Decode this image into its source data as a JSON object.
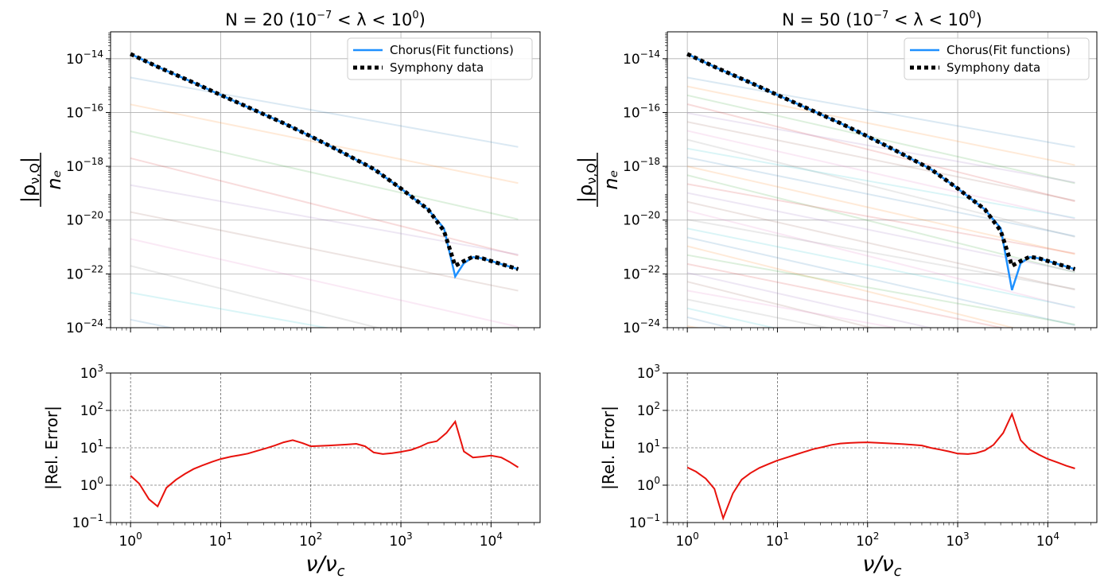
{
  "figure": {
    "panels": [
      {
        "title": "N = 20 (10⁻⁷ < λ < 10⁰)",
        "title_main": "N = 20 (10",
        "title_exp1": "−7",
        "title_mid": " < λ < 10",
        "title_exp2": "0",
        "title_end": ")",
        "ylabel_top": "|ρ",
        "ylabel_sub": "ν,Q",
        "ylabel_bottom": "nₑ",
        "ylabel_err": "|Rel. Error|",
        "xlabel": "ν/ν",
        "xlabel_sub": "c"
      },
      {
        "title": "N = 50 (10⁻⁷ < λ < 10⁰)",
        "title_main": "N = 50 (10",
        "title_exp1": "−7",
        "title_mid": " < λ < 10",
        "title_exp2": "0",
        "title_end": ")",
        "ylabel_top": "|ρ",
        "ylabel_sub": "ν,Q",
        "ylabel_bottom": "nₑ",
        "ylabel_err": "|Rel. Error|",
        "xlabel": "ν/ν",
        "xlabel_sub": "c"
      }
    ],
    "legend": {
      "fit": "Chorus(Fit functions)",
      "data": "Symphony data"
    },
    "colors": {
      "fit": "#1e90ff",
      "data": "#000000",
      "error": "#e8120c",
      "grid": "#b0b0b0"
    }
  },
  "chart_data": [
    {
      "type": "line",
      "title": "N = 20 (10^-7 < λ < 10^0)",
      "xlabel": "ν/ν_c",
      "ylabel": "|ρ_ν,Q| / n_e",
      "xscale": "log",
      "yscale": "log",
      "xlim": [
        0.6,
        35000
      ],
      "ylim": [
        1e-24,
        1e-13
      ],
      "xticks": [
        "10^0",
        "10^1",
        "10^2",
        "10^3",
        "10^4"
      ],
      "yticks": [
        "10^-24",
        "10^-22",
        "10^-20",
        "10^-18",
        "10^-16",
        "10^-14"
      ],
      "grid": true,
      "legend_position": "top-right",
      "series": [
        {
          "name": "Chorus(Fit functions)",
          "style": "solid",
          "color": "#1e90ff",
          "x": [
            1,
            2,
            5,
            10,
            20,
            50,
            100,
            200,
            500,
            1000,
            2000,
            3000,
            4000,
            5000,
            6300,
            8000,
            10000,
            15000,
            20000
          ],
          "y": [
            1.5e-14,
            5e-15,
            1.3e-15,
            4.5e-16,
            1.6e-16,
            4e-17,
            1.3e-17,
            4e-18,
            8e-19,
            1.5e-19,
            2.5e-20,
            5e-21,
            8e-23,
            2.5e-22,
            4.2e-22,
            3.8e-22,
            3e-22,
            2e-22,
            1.5e-22
          ]
        },
        {
          "name": "Symphony data",
          "style": "dotted",
          "color": "#000000",
          "x": [
            1,
            2,
            5,
            10,
            20,
            50,
            100,
            200,
            500,
            1000,
            2000,
            3000,
            4000,
            5000,
            6300,
            8000,
            10000,
            15000,
            20000
          ],
          "y": [
            1.5e-14,
            5e-15,
            1.3e-15,
            4.5e-16,
            1.6e-16,
            4e-17,
            1.3e-17,
            4e-18,
            8e-19,
            1.5e-19,
            2.5e-20,
            4e-21,
            2e-22,
            3e-22,
            4.3e-22,
            3.8e-22,
            3e-22,
            2e-22,
            1.5e-22
          ]
        }
      ]
    },
    {
      "type": "line",
      "xlabel": "ν/ν_c",
      "ylabel": "|Rel. Error|",
      "xscale": "log",
      "yscale": "log",
      "xlim": [
        0.6,
        35000
      ],
      "ylim": [
        0.1,
        1000
      ],
      "xticks": [
        "10^0",
        "10^1",
        "10^2",
        "10^3",
        "10^4"
      ],
      "yticks": [
        "10^-1",
        "10^0",
        "10^1",
        "10^2",
        "10^3"
      ],
      "grid": true,
      "series": [
        {
          "color": "#e8120c",
          "x": [
            1,
            1.25,
            1.6,
            2,
            2.5,
            3.2,
            4,
            5,
            6.3,
            8,
            10,
            13,
            16,
            20,
            25,
            32,
            40,
            50,
            63,
            80,
            100,
            160,
            250,
            320,
            400,
            500,
            630,
            800,
            1000,
            1300,
            1600,
            2000,
            2500,
            3200,
            4000,
            5000,
            6300,
            8000,
            10000,
            13000,
            16000,
            20000
          ],
          "y": [
            1.8,
            1.1,
            0.42,
            0.27,
            0.85,
            1.4,
            2.0,
            2.7,
            3.4,
            4.2,
            5.0,
            5.8,
            6.3,
            7.0,
            8.2,
            9.7,
            11.5,
            14,
            16,
            13.5,
            11,
            11.5,
            12.2,
            12.8,
            11,
            7.5,
            6.8,
            7.2,
            7.8,
            8.8,
            10.5,
            13.5,
            15,
            25,
            50,
            8,
            5.5,
            5.8,
            6.2,
            5.5,
            4.2,
            3
          ]
        }
      ]
    },
    {
      "type": "line",
      "title": "N = 50 (10^-7 < λ < 10^0)",
      "xlabel": "ν/ν_c",
      "ylabel": "|ρ_ν,Q| / n_e",
      "xscale": "log",
      "yscale": "log",
      "xlim": [
        0.6,
        35000
      ],
      "ylim": [
        1e-24,
        1e-13
      ],
      "xticks": [
        "10^0",
        "10^1",
        "10^2",
        "10^3",
        "10^4"
      ],
      "yticks": [
        "10^-24",
        "10^-22",
        "10^-20",
        "10^-18",
        "10^-16",
        "10^-14"
      ],
      "grid": true,
      "legend_position": "top-right",
      "series": [
        {
          "name": "Chorus(Fit functions)",
          "style": "solid",
          "color": "#1e90ff",
          "x": [
            1,
            2,
            5,
            10,
            20,
            50,
            100,
            200,
            500,
            1000,
            2000,
            3000,
            4000,
            5000,
            6300,
            8000,
            10000,
            15000,
            20000
          ],
          "y": [
            1.5e-14,
            5e-15,
            1.3e-15,
            4.5e-16,
            1.6e-16,
            4e-17,
            1.3e-17,
            4e-18,
            8e-19,
            1.5e-19,
            2.5e-20,
            5e-21,
            2.5e-23,
            2.5e-22,
            4.2e-22,
            3.8e-22,
            3e-22,
            2e-22,
            1.5e-22
          ]
        },
        {
          "name": "Symphony data",
          "style": "dotted",
          "color": "#000000",
          "x": [
            1,
            2,
            5,
            10,
            20,
            50,
            100,
            200,
            500,
            1000,
            2000,
            3000,
            4000,
            5000,
            6300,
            8000,
            10000,
            15000,
            20000
          ],
          "y": [
            1.5e-14,
            5e-15,
            1.3e-15,
            4.5e-16,
            1.6e-16,
            4e-17,
            1.3e-17,
            4e-18,
            8e-19,
            1.5e-19,
            2.5e-20,
            4e-21,
            2e-22,
            3e-22,
            4.3e-22,
            3.8e-22,
            3e-22,
            2e-22,
            1.5e-22
          ]
        }
      ]
    },
    {
      "type": "line",
      "xlabel": "ν/ν_c",
      "ylabel": "|Rel. Error|",
      "xscale": "log",
      "yscale": "log",
      "xlim": [
        0.6,
        35000
      ],
      "ylim": [
        0.1,
        1000
      ],
      "xticks": [
        "10^0",
        "10^1",
        "10^2",
        "10^3",
        "10^4"
      ],
      "yticks": [
        "10^-1",
        "10^0",
        "10^1",
        "10^2",
        "10^3"
      ],
      "grid": true,
      "series": [
        {
          "color": "#e8120c",
          "x": [
            1,
            1.25,
            1.6,
            2,
            2.5,
            3.2,
            4,
            5,
            6.3,
            8,
            10,
            13,
            16,
            20,
            25,
            32,
            40,
            50,
            63,
            80,
            100,
            160,
            250,
            320,
            400,
            500,
            630,
            800,
            1000,
            1300,
            1600,
            2000,
            2500,
            3200,
            4000,
            5000,
            6300,
            8000,
            10000,
            13000,
            16000,
            20000
          ],
          "y": [
            3,
            2.3,
            1.5,
            0.8,
            0.13,
            0.6,
            1.4,
            2.1,
            2.9,
            3.7,
            4.6,
            5.6,
            6.6,
            7.8,
            9.2,
            10.5,
            12,
            13,
            13.5,
            13.8,
            14,
            13.2,
            12.5,
            12,
            11.5,
            10,
            9,
            8,
            7,
            6.8,
            7.2,
            8.5,
            12,
            25,
            80,
            16,
            9,
            6.5,
            5,
            4,
            3.3,
            2.8
          ]
        }
      ]
    }
  ]
}
